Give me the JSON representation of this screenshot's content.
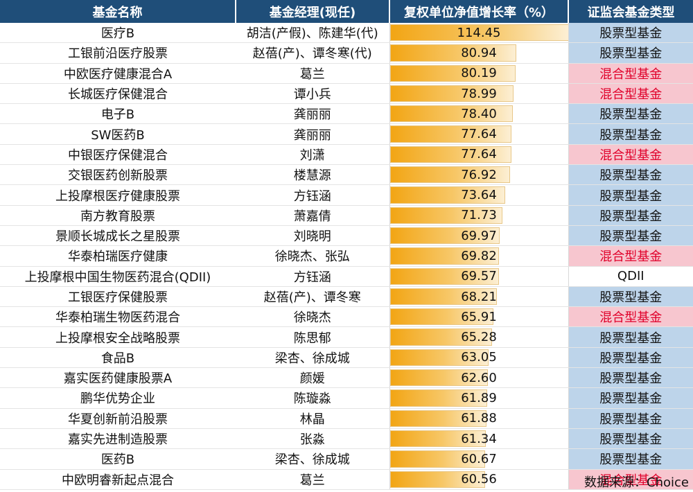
{
  "table": {
    "headers": [
      "基金名称",
      "基金经理(现任)",
      "复权单位净值增长率（%）",
      "证监会基金类型"
    ]
  },
  "chart_data": {
    "type": "table",
    "columns": [
      "基金名称",
      "基金经理(现任)",
      "复权单位净值增长率（%）",
      "证监会基金类型"
    ],
    "bar_column": "复权单位净值增长率（%）",
    "type_colors": {
      "股票型基金": "#bdd4ea",
      "混合型基金": "#f7c6cf",
      "QDII": "#ffffff"
    },
    "rows": [
      {
        "name": "医疗B",
        "manager": "胡洁(产假)、陈建华(代)",
        "value": "114.45",
        "type": "股票型基金"
      },
      {
        "name": "工银前沿医疗股票",
        "manager": "赵蓓(产)、谭冬寒(代)",
        "value": "80.94",
        "type": "股票型基金"
      },
      {
        "name": "中欧医疗健康混合A",
        "manager": "葛兰",
        "value": "80.19",
        "type": "混合型基金"
      },
      {
        "name": "长城医疗保健混合",
        "manager": "谭小兵",
        "value": "78.99",
        "type": "混合型基金"
      },
      {
        "name": "电子B",
        "manager": "龚丽丽",
        "value": "78.40",
        "type": "股票型基金"
      },
      {
        "name": "SW医药B",
        "manager": "龚丽丽",
        "value": "77.64",
        "type": "股票型基金"
      },
      {
        "name": "中银医疗保健混合",
        "manager": "刘潇",
        "value": "77.64",
        "type": "混合型基金"
      },
      {
        "name": "交银医药创新股票",
        "manager": "楼慧源",
        "value": "76.92",
        "type": "股票型基金"
      },
      {
        "name": "上投摩根医疗健康股票",
        "manager": "方钰涵",
        "value": "73.64",
        "type": "股票型基金"
      },
      {
        "name": "南方教育股票",
        "manager": "萧嘉倩",
        "value": "71.73",
        "type": "股票型基金"
      },
      {
        "name": "景顺长城成长之星股票",
        "manager": "刘晓明",
        "value": "69.97",
        "type": "股票型基金"
      },
      {
        "name": "华泰柏瑞医疗健康",
        "manager": "徐晓杰、张弘",
        "value": "69.82",
        "type": "混合型基金"
      },
      {
        "name": "上投摩根中国生物医药混合(QDII)",
        "manager": "方钰涵",
        "value": "69.57",
        "type": "QDII"
      },
      {
        "name": "工银医疗保健股票",
        "manager": "赵蓓(产)、谭冬寒",
        "value": "68.21",
        "type": "股票型基金"
      },
      {
        "name": "华泰柏瑞生物医药混合",
        "manager": "徐晓杰",
        "value": "65.91",
        "type": "混合型基金"
      },
      {
        "name": "上投摩根安全战略股票",
        "manager": "陈思郁",
        "value": "65.28",
        "type": "股票型基金"
      },
      {
        "name": "食品B",
        "manager": "梁杏、徐成城",
        "value": "63.05",
        "type": "股票型基金"
      },
      {
        "name": "嘉实医药健康股票A",
        "manager": "颜媛",
        "value": "62.60",
        "type": "股票型基金"
      },
      {
        "name": "鹏华优势企业",
        "manager": "陈璇淼",
        "value": "61.89",
        "type": "股票型基金"
      },
      {
        "name": "华夏创新前沿股票",
        "manager": "林晶",
        "value": "61.88",
        "type": "股票型基金"
      },
      {
        "name": "嘉实先进制造股票",
        "manager": "张淼",
        "value": "61.34",
        "type": "股票型基金"
      },
      {
        "name": "医药B",
        "manager": "梁杏、徐成城",
        "value": "60.67",
        "type": "股票型基金"
      },
      {
        "name": "中欧明睿新起点混合",
        "manager": "葛兰",
        "value": "60.56",
        "type": "混合型基金"
      }
    ]
  },
  "source": "数据来源：Choice"
}
